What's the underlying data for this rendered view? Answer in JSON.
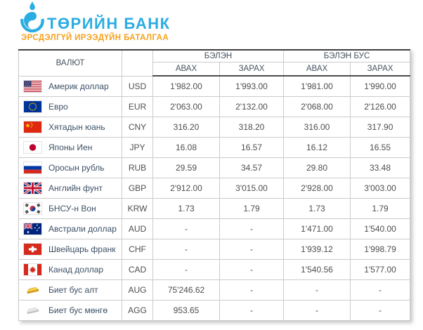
{
  "brand": {
    "bank_name": "ТӨРИЙН БАНК",
    "tagline": "ЭРСДЭЛГҮЙ ИРЭЭДҮЙН БАТАЛГАА",
    "logo_color": "#2BACE2",
    "tagline_color": "#F6A11C"
  },
  "table": {
    "headers": {
      "currency": "ВАЛЮТ",
      "cash": "БЭЛЭН",
      "non_cash": "БЭЛЭН БУС",
      "buy": "АВАХ",
      "sell": "ЗАРАХ"
    },
    "rows": [
      {
        "icon": "us-flag",
        "name": "Америк доллар",
        "code": "USD",
        "cash_buy": "1'982.00",
        "cash_sell": "1'993.00",
        "noncash_buy": "1'981.00",
        "noncash_sell": "1'990.00"
      },
      {
        "icon": "eu-flag",
        "name": "Евро",
        "code": "EUR",
        "cash_buy": "2'063.00",
        "cash_sell": "2'132.00",
        "noncash_buy": "2'068.00",
        "noncash_sell": "2'126.00"
      },
      {
        "icon": "cn-flag",
        "name": "Хятадын юань",
        "code": "CNY",
        "cash_buy": "316.20",
        "cash_sell": "318.20",
        "noncash_buy": "316.00",
        "noncash_sell": "317.90"
      },
      {
        "icon": "jp-flag",
        "name": "Японы Иен",
        "code": "JPY",
        "cash_buy": "16.08",
        "cash_sell": "16.57",
        "noncash_buy": "16.12",
        "noncash_sell": "16.55"
      },
      {
        "icon": "ru-flag",
        "name": "Оросын рубль",
        "code": "RUB",
        "cash_buy": "29.59",
        "cash_sell": "34.57",
        "noncash_buy": "29.80",
        "noncash_sell": "33.48"
      },
      {
        "icon": "gb-flag",
        "name": "Английн фунт",
        "code": "GBP",
        "cash_buy": "2'912.00",
        "cash_sell": "3'015.00",
        "noncash_buy": "2'928.00",
        "noncash_sell": "3'003.00"
      },
      {
        "icon": "kr-flag",
        "name": "БНСУ-н Вон",
        "code": "KRW",
        "cash_buy": "1.73",
        "cash_sell": "1.79",
        "noncash_buy": "1.73",
        "noncash_sell": "1.79"
      },
      {
        "icon": "au-flag",
        "name": "Австрали доллар",
        "code": "AUD",
        "cash_buy": "-",
        "cash_sell": "-",
        "noncash_buy": "1'471.00",
        "noncash_sell": "1'540.00"
      },
      {
        "icon": "ch-flag",
        "name": "Швейцарь франк",
        "code": "CHF",
        "cash_buy": "-",
        "cash_sell": "-",
        "noncash_buy": "1'939.12",
        "noncash_sell": "1'998.79"
      },
      {
        "icon": "ca-flag",
        "name": "Канад доллар",
        "code": "CAD",
        "cash_buy": "-",
        "cash_sell": "-",
        "noncash_buy": "1'540.56",
        "noncash_sell": "1'577.00"
      },
      {
        "icon": "gold-bar",
        "name": "Биет бус алт",
        "code": "AUG",
        "cash_buy": "75'246.62",
        "cash_sell": "-",
        "noncash_buy": "-",
        "noncash_sell": "-"
      },
      {
        "icon": "silver-bar",
        "name": "Биет бус мөнгө",
        "code": "AGG",
        "cash_buy": "953.65",
        "cash_sell": "-",
        "noncash_buy": "-",
        "noncash_sell": "-"
      }
    ]
  }
}
